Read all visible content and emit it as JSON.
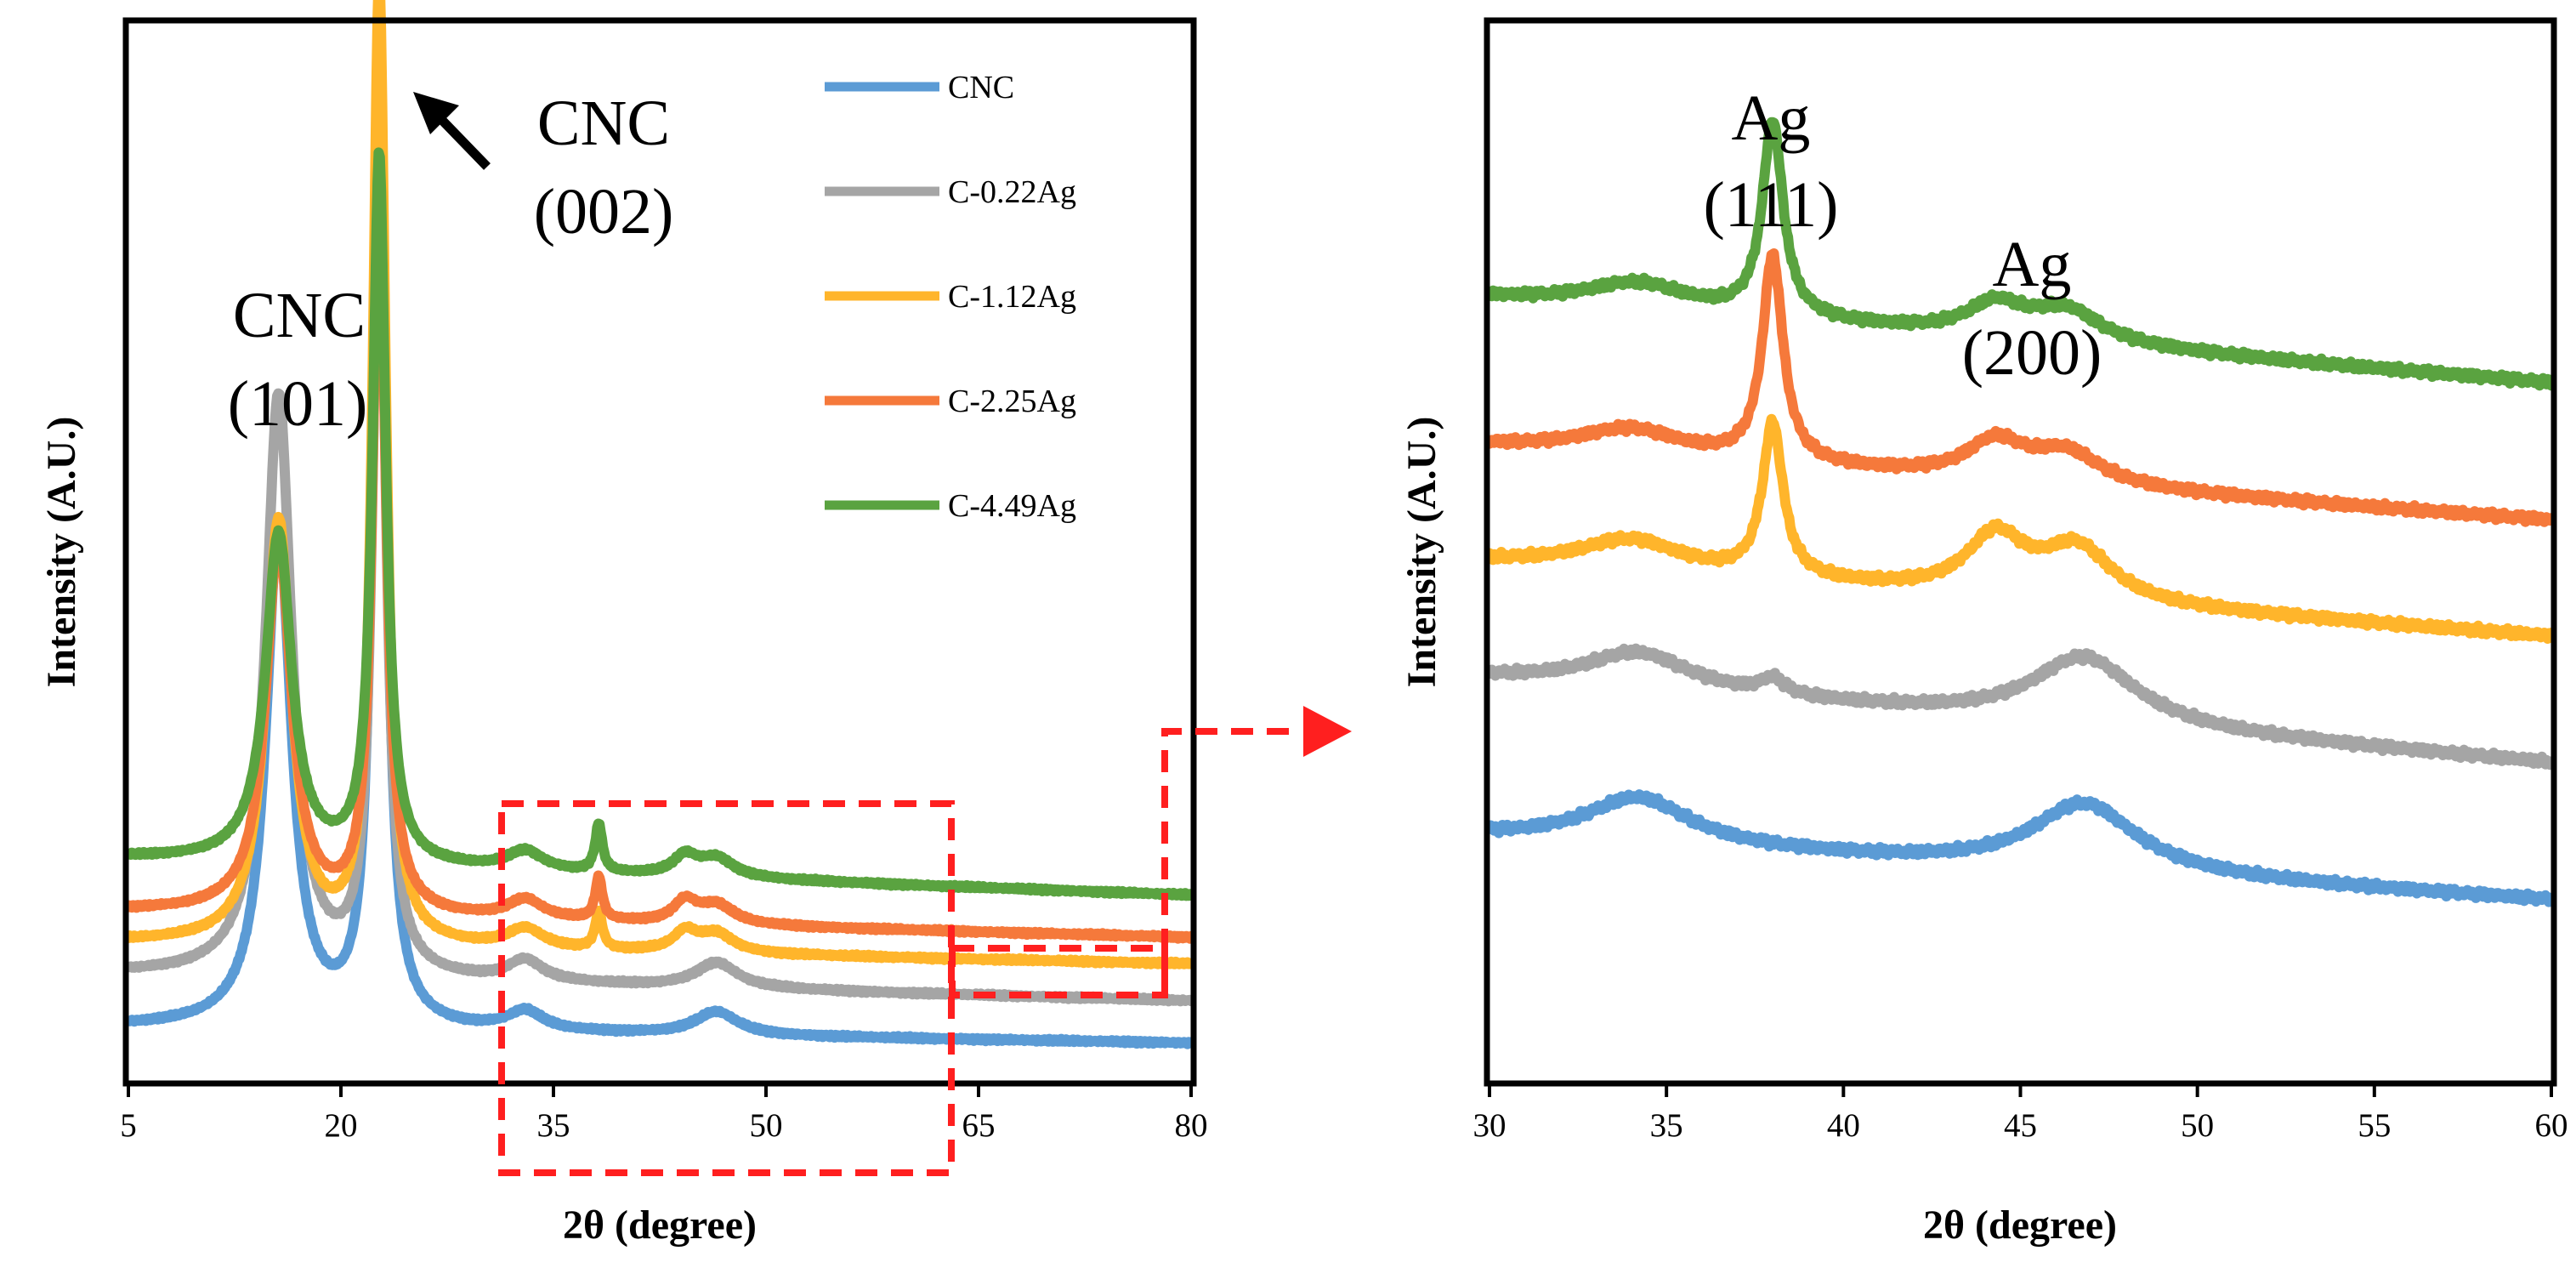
{
  "chart_data": [
    {
      "type": "line",
      "panel": "left",
      "xlabel": "2θ (degree)",
      "ylabel": "Intensity (A.U.)",
      "xlim": [
        5,
        80
      ],
      "xticks": [
        5,
        20,
        35,
        50,
        65,
        80
      ],
      "ylim": [
        0,
        100
      ],
      "ygrid": false,
      "legend": {
        "position": "top-right",
        "entries": [
          "CNC",
          "C-0.22Ag",
          "C-1.12Ag",
          "C-2.25Ag",
          "C-4.49Ag"
        ]
      },
      "annotations": [
        {
          "lines": [
            "CNC",
            "(101)"
          ],
          "x": 15.2
        },
        {
          "lines": [
            "CNC",
            "(002)"
          ],
          "x": 27.5
        }
      ],
      "series": [
        {
          "name": "CNC",
          "color": "#5b9bd5",
          "baseline": 5,
          "tail": 3.5,
          "peaks": [
            [
              15.6,
              47,
              1.1
            ],
            [
              22.7,
              95,
              0.55
            ],
            [
              33,
              1.8,
              1.5
            ],
            [
              46.5,
              2.2,
              1.8
            ]
          ]
        },
        {
          "name": "C-0.22Ag",
          "color": "#a5a5a5",
          "baseline": 10,
          "tail": 7.5,
          "peaks": [
            [
              15.6,
              55,
              1.1
            ],
            [
              22.7,
              78,
              0.55
            ],
            [
              33,
              2.0,
              1.5
            ],
            [
              46.5,
              2.4,
              1.8
            ]
          ]
        },
        {
          "name": "C-1.12Ag",
          "color": "#ffb52b",
          "baseline": 13,
          "tail": 11,
          "peaks": [
            [
              15.6,
              40,
              1.1
            ],
            [
              22.7,
              91,
              0.55
            ],
            [
              33,
              1.8,
              1.5
            ],
            [
              38.2,
              3.5,
              0.3
            ],
            [
              44.3,
              1.8,
              1.0
            ],
            [
              46.5,
              1.8,
              1.5
            ]
          ]
        },
        {
          "name": "C-2.25Ag",
          "color": "#f5793b",
          "baseline": 16,
          "tail": 13.5,
          "peaks": [
            [
              15.6,
              35,
              1.1
            ],
            [
              22.7,
              70,
              0.55
            ],
            [
              33,
              1.8,
              1.5
            ],
            [
              38.2,
              4.0,
              0.3
            ],
            [
              44.3,
              2.0,
              1.0
            ],
            [
              46.5,
              1.8,
              1.5
            ]
          ]
        },
        {
          "name": "C-4.49Ag",
          "color": "#5aa340",
          "baseline": 21,
          "tail": 17.5,
          "peaks": [
            [
              15.6,
              31,
              1.1
            ],
            [
              22.7,
              67,
              0.55
            ],
            [
              33,
              1.8,
              1.5
            ],
            [
              38.2,
              4.5,
              0.3
            ],
            [
              44.3,
              1.8,
              1.0
            ],
            [
              46.5,
              1.8,
              1.5
            ]
          ]
        }
      ]
    },
    {
      "type": "line",
      "panel": "right",
      "xlabel": "2θ (degree)",
      "ylabel": "Intensity (A.U.)",
      "xlim": [
        30,
        60
      ],
      "xticks": [
        30,
        35,
        40,
        45,
        50,
        55,
        60
      ],
      "ylim": [
        0,
        100
      ],
      "annotations": [
        {
          "lines": [
            "Ag",
            "(111)"
          ],
          "x": 38.2
        },
        {
          "lines": [
            "Ag",
            "(200)"
          ],
          "x": 44.3
        }
      ],
      "series": [
        {
          "name": "CNC",
          "color": "#5b9bd5",
          "start": 23,
          "end": 17,
          "peaks": [
            [
              34.2,
              4.5,
              1.8
            ],
            [
              46.8,
              6.5,
              1.8
            ]
          ]
        },
        {
          "name": "C-0.22Ag",
          "color": "#a5a5a5",
          "start": 38,
          "end": 30,
          "peaks": [
            [
              34.2,
              3.5,
              1.8
            ],
            [
              38.0,
              1.5,
              0.4
            ],
            [
              46.8,
              6.5,
              1.8
            ]
          ]
        },
        {
          "name": "C-1.12Ag",
          "color": "#ffb52b",
          "start": 49,
          "end": 42,
          "peaks": [
            [
              34.0,
              3.0,
              1.8
            ],
            [
              38.0,
              14.5,
              0.35
            ],
            [
              44.3,
              5.5,
              1.0
            ],
            [
              46.6,
              5.0,
              1.2
            ]
          ]
        },
        {
          "name": "C-2.25Ag",
          "color": "#f5793b",
          "start": 60,
          "end": 53,
          "peaks": [
            [
              34.0,
              2.5,
              1.8
            ],
            [
              38.0,
              19.5,
              0.35
            ],
            [
              44.3,
              3.5,
              1.0
            ],
            [
              46.3,
              3.0,
              1.2
            ]
          ]
        },
        {
          "name": "C-4.49Ag",
          "color": "#5aa340",
          "start": 74,
          "end": 66,
          "peaks": [
            [
              34.2,
              2.5,
              1.8
            ],
            [
              38.0,
              18.5,
              0.35
            ],
            [
              44.3,
              3.0,
              1.0
            ],
            [
              46.3,
              3.0,
              1.2
            ]
          ]
        }
      ]
    }
  ]
}
